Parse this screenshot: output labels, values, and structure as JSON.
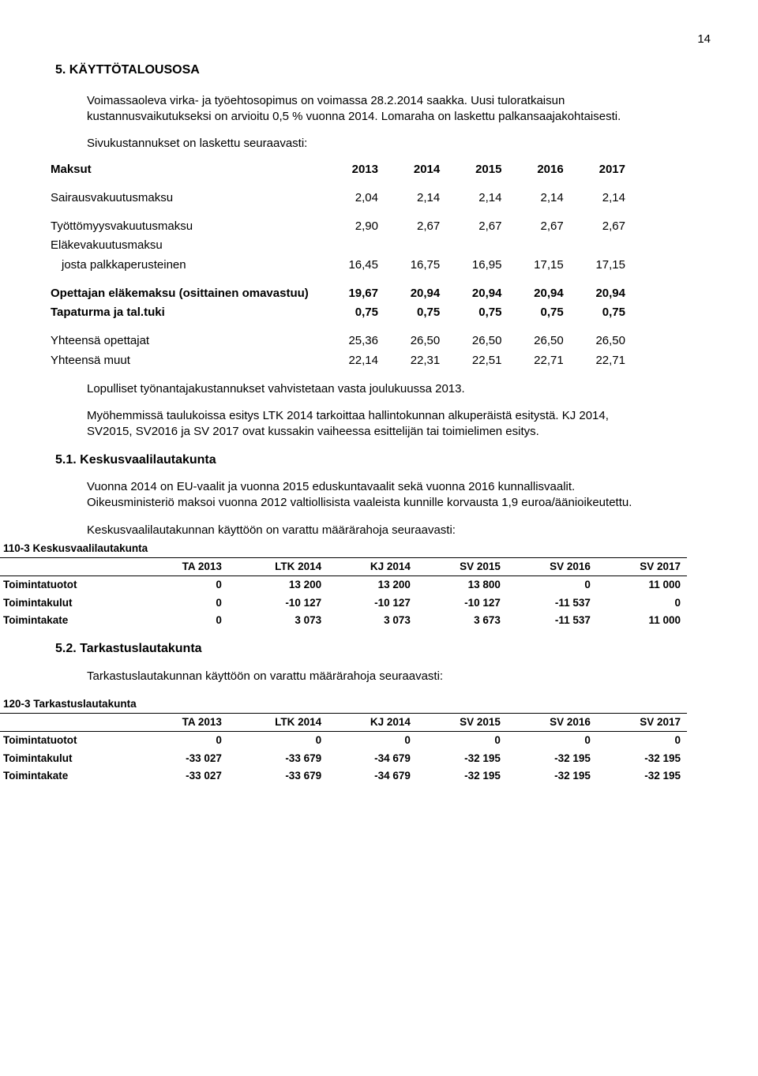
{
  "pageNumber": "14",
  "heading1": "5. KÄYTTÖTALOUSOSA",
  "intro1": "Voimassaoleva virka- ja työehtosopimus on voimassa 28.2.2014 saakka. Uusi tuloratkaisun kustannusvaikutukseksi on arvioitu 0,5 % vuonna 2014. Lomaraha on laskettu palkansaajakohtaisesti.",
  "intro2": "Sivukustannukset on laskettu seuraavasti:",
  "maksuTable": {
    "headerLabel": "Maksut",
    "years": [
      "2013",
      "2014",
      "2015",
      "2016",
      "2017"
    ],
    "rows": [
      {
        "label": "Sairausvakuutusmaksu",
        "v": [
          "2,04",
          "2,14",
          "2,14",
          "2,14",
          "2,14"
        ],
        "bold": false
      },
      {
        "spacer": true
      },
      {
        "label": "Työttömyysvakuutusmaksu",
        "v": [
          "2,90",
          "2,67",
          "2,67",
          "2,67",
          "2,67"
        ],
        "bold": false
      },
      {
        "label": "Eläkevakuutusmaksu",
        "v": [
          "",
          "",
          "",
          "",
          ""
        ],
        "bold": false
      },
      {
        "label": "josta palkkaperusteinen",
        "v": [
          "16,45",
          "16,75",
          "16,95",
          "17,15",
          "17,15"
        ],
        "bold": false,
        "indent": true
      },
      {
        "spacer": true
      },
      {
        "label": "Opettajan eläkemaksu (osittainen omavastuu)",
        "v": [
          "19,67",
          "20,94",
          "20,94",
          "20,94",
          "20,94"
        ],
        "bold": true
      },
      {
        "label": "Tapaturma ja tal.tuki",
        "v": [
          "0,75",
          "0,75",
          "0,75",
          "0,75",
          "0,75"
        ],
        "bold": true
      },
      {
        "spacer": true
      },
      {
        "label": "Yhteensä opettajat",
        "v": [
          "25,36",
          "26,50",
          "26,50",
          "26,50",
          "26,50"
        ],
        "bold": false
      },
      {
        "label": "Yhteensä muut",
        "v": [
          "22,14",
          "22,31",
          "22,51",
          "22,71",
          "22,71"
        ],
        "bold": false
      }
    ]
  },
  "para_lop": "Lopulliset työnantajakustannukset vahvistetaan vasta joulukuussa 2013.",
  "para_myoh": "Myöhemmissä taulukoissa esitys  LTK 2014 tarkoittaa hallintokunnan alkuperäistä esitystä. KJ 2014,  SV2015, SV2016 ja SV 2017 ovat kussakin vaiheessa esittelijän tai toimielimen esitys.",
  "heading511": "5.1. Keskusvaalilautakunta",
  "para_511a": "Vuonna 2014 on EU-vaalit ja vuonna 2015 eduskuntavaalit sekä vuonna 2016 kunnallisvaalit. Oikeusministeriö maksoi vuonna 2012 valtiollisista vaaleista kunnille korvausta 1,9 euroa/äänioikeutettu.",
  "para_511b": "Keskusvaalilautakunnan käyttöön on varattu määrärahoja seuraavasti:",
  "finTable1": {
    "title": "110-3 Keskusvaalilautakunta",
    "cols": [
      "TA 2013",
      "LTK 2014",
      "KJ 2014",
      "SV 2015",
      "SV 2016",
      "SV 2017"
    ],
    "rows": [
      {
        "label": "Toimintatuotot",
        "v": [
          "0",
          "13 200",
          "13 200",
          "13 800",
          "0",
          "11 000"
        ]
      },
      {
        "label": "Toimintakulut",
        "v": [
          "0",
          "-10 127",
          "-10 127",
          "-10 127",
          "-11 537",
          "0"
        ]
      },
      {
        "label": "Toimintakate",
        "v": [
          "0",
          "3 073",
          "3 073",
          "3 673",
          "-11 537",
          "11 000"
        ]
      }
    ]
  },
  "heading52": "5.2. Tarkastuslautakunta",
  "para_52": "Tarkastuslautakunnan käyttöön on varattu määrärahoja seuraavasti:",
  "finTable2": {
    "title": "120-3 Tarkastuslautakunta",
    "cols": [
      "TA 2013",
      "LTK 2014",
      "KJ 2014",
      "SV 2015",
      "SV 2016",
      "SV 2017"
    ],
    "rows": [
      {
        "label": "Toimintatuotot",
        "v": [
          "0",
          "0",
          "0",
          "0",
          "0",
          "0"
        ]
      },
      {
        "label": "Toimintakulut",
        "v": [
          "-33 027",
          "-33 679",
          "-34 679",
          "-32 195",
          "-32 195",
          "-32 195"
        ]
      },
      {
        "label": "Toimintakate",
        "v": [
          "-33 027",
          "-33 679",
          "-34 679",
          "-32 195",
          "-32 195",
          "-32 195"
        ]
      }
    ]
  }
}
